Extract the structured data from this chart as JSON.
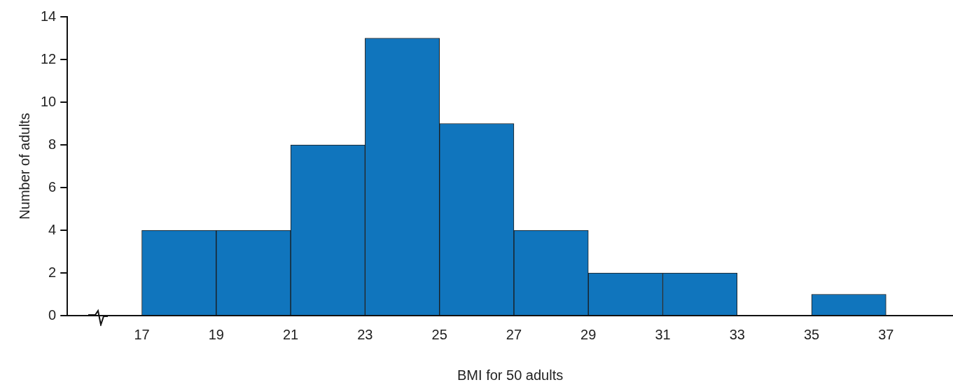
{
  "chart_data": {
    "type": "histogram",
    "xlabel": "BMI for 50 adults",
    "ylabel": "Number of adults",
    "bins": [
      17,
      19,
      21,
      23,
      25,
      27,
      29,
      31,
      33,
      35,
      37
    ],
    "values": [
      4,
      4,
      8,
      13,
      9,
      4,
      2,
      2,
      0,
      1
    ],
    "color": "#1075bd",
    "xlim": [
      15,
      38.8
    ],
    "xticks": [
      17,
      19,
      21,
      23,
      25,
      27,
      29,
      31,
      33,
      35,
      37
    ],
    "ylim": [
      0,
      14
    ],
    "yticks": [
      0,
      2,
      4,
      6,
      8,
      10,
      12,
      14
    ],
    "grid": false,
    "legend": false
  }
}
